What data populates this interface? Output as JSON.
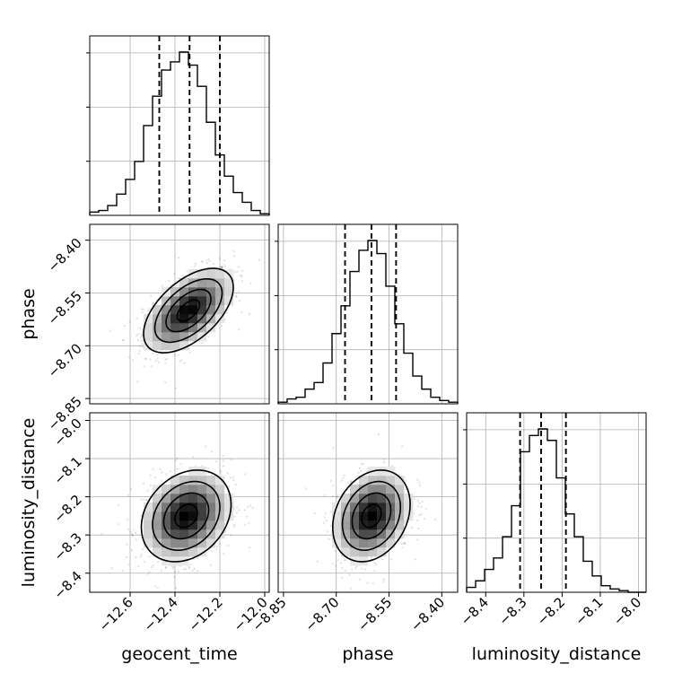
{
  "chart_data": {
    "type": "corner",
    "parameters": [
      {
        "key": "geocent_time",
        "label": "geocent_time",
        "range": [
          -12.78,
          -11.98
        ],
        "ticks": [
          "−12.6",
          "−12.4",
          "−12.2",
          "−12.0"
        ],
        "tick_values": [
          -12.6,
          -12.4,
          -12.2,
          -12.0
        ],
        "median": -12.335,
        "q16": -12.47,
        "q84": -12.2,
        "hist": {
          "edges_start": -12.78,
          "bin_width": 0.04,
          "counts": [
            0.02,
            0.03,
            0.06,
            0.13,
            0.22,
            0.33,
            0.55,
            0.73,
            0.89,
            0.94,
            1.0,
            0.92,
            0.79,
            0.57,
            0.37,
            0.24,
            0.14,
            0.08,
            0.03,
            0.01
          ]
        }
      },
      {
        "key": "phase",
        "label": "phase",
        "range": [
          -8.865,
          -8.355
        ],
        "ticks": [
          "−8.85",
          "−8.70",
          "−8.55",
          "−8.40"
        ],
        "tick_values": [
          -8.85,
          -8.7,
          -8.55,
          -8.4
        ],
        "median": -8.6,
        "q16": -8.675,
        "q84": -8.53,
        "hist": {
          "edges_start": -8.865,
          "bin_width": 0.0255,
          "counts": [
            0.01,
            0.03,
            0.04,
            0.09,
            0.13,
            0.25,
            0.43,
            0.6,
            0.81,
            0.94,
            1.0,
            0.92,
            0.72,
            0.49,
            0.31,
            0.17,
            0.09,
            0.04,
            0.02,
            0.01
          ]
        }
      },
      {
        "key": "luminosity_distance",
        "label": "luminosity_distance",
        "range": [
          -8.45,
          -7.98
        ],
        "ticks": [
          "−8.4",
          "−8.3",
          "−8.2",
          "−8.1",
          "−8.0"
        ],
        "tick_values": [
          -8.4,
          -8.3,
          -8.2,
          -8.1,
          -8.0
        ],
        "median": -8.255,
        "q16": -8.31,
        "q84": -8.19,
        "hist": {
          "edges_start": -8.45,
          "bin_width": 0.0235,
          "counts": [
            0.03,
            0.07,
            0.14,
            0.21,
            0.34,
            0.53,
            0.86,
            0.96,
            1.0,
            0.93,
            0.7,
            0.48,
            0.34,
            0.19,
            0.1,
            0.04,
            0.02,
            0.01,
            0.0,
            0.0
          ]
        }
      }
    ],
    "pairs": [
      {
        "x": "geocent_time",
        "y": "phase",
        "mean": [
          -12.34,
          -8.6
        ],
        "sd": [
          0.1,
          0.06
        ],
        "rho": 0.55
      },
      {
        "x": "geocent_time",
        "y": "luminosity_distance",
        "mean": [
          -12.35,
          -8.25
        ],
        "sd": [
          0.1,
          0.06
        ],
        "rho": 0.25
      },
      {
        "x": "phase",
        "y": "luminosity_distance",
        "mean": [
          -8.6,
          -8.25
        ],
        "sd": [
          0.055,
          0.06
        ],
        "rho": 0.25
      }
    ],
    "contour_levels_sigma": [
      0.5,
      1.0,
      1.5,
      2.0
    ],
    "grid": true,
    "legend": "none"
  }
}
